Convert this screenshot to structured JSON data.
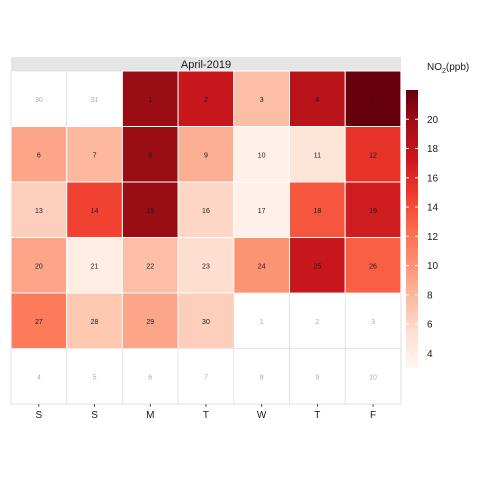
{
  "chart_data": {
    "type": "heatmap",
    "title": "April-2019",
    "legend_title": {
      "main": "NO",
      "sub": "2",
      "suffix": "(ppb)"
    },
    "legend_placement": "right",
    "legend_ticks": [
      4,
      6,
      8,
      10,
      12,
      14,
      16,
      18,
      20
    ],
    "color_range": [
      3,
      22
    ],
    "colors": {
      "low": "#fff5f0",
      "high": "#67000d",
      "inactive_text": "#aaaaaa",
      "active_text": "#1a1a1a",
      "header_bg": "#e5e5e5",
      "grid_line": "#d9d9d9"
    },
    "weekday_labels": [
      "S",
      "S",
      "M",
      "T",
      "W",
      "T",
      "F"
    ],
    "cells": [
      {
        "week": 0,
        "weekday": 0,
        "day": "30",
        "value": null
      },
      {
        "week": 0,
        "weekday": 1,
        "day": "31",
        "value": null
      },
      {
        "week": 0,
        "weekday": 2,
        "day": "1",
        "value": 20
      },
      {
        "week": 0,
        "weekday": 3,
        "day": "2",
        "value": 17.5
      },
      {
        "week": 0,
        "weekday": 4,
        "day": "3",
        "value": 7.5
      },
      {
        "week": 0,
        "weekday": 5,
        "day": "4",
        "value": 18.5
      },
      {
        "week": 0,
        "weekday": 6,
        "day": "5",
        "value": 22
      },
      {
        "week": 1,
        "weekday": 0,
        "day": "6",
        "value": 9
      },
      {
        "week": 1,
        "weekday": 1,
        "day": "7",
        "value": 8
      },
      {
        "week": 1,
        "weekday": 2,
        "day": "8",
        "value": 20
      },
      {
        "week": 1,
        "weekday": 3,
        "day": "9",
        "value": 8.5
      },
      {
        "week": 1,
        "weekday": 4,
        "day": "10",
        "value": 3.5
      },
      {
        "week": 1,
        "weekday": 5,
        "day": "11",
        "value": 5
      },
      {
        "week": 1,
        "weekday": 6,
        "day": "12",
        "value": 15.5
      },
      {
        "week": 2,
        "weekday": 0,
        "day": "13",
        "value": 6.5
      },
      {
        "week": 2,
        "weekday": 1,
        "day": "14",
        "value": 14.5
      },
      {
        "week": 2,
        "weekday": 2,
        "day": "15",
        "value": 20
      },
      {
        "week": 2,
        "weekday": 3,
        "day": "16",
        "value": 6
      },
      {
        "week": 2,
        "weekday": 4,
        "day": "17",
        "value": 3.5
      },
      {
        "week": 2,
        "weekday": 5,
        "day": "18",
        "value": 13.5
      },
      {
        "week": 2,
        "weekday": 6,
        "day": "19",
        "value": 17
      },
      {
        "week": 3,
        "weekday": 0,
        "day": "20",
        "value": 9
      },
      {
        "week": 3,
        "weekday": 1,
        "day": "21",
        "value": 4
      },
      {
        "week": 3,
        "weekday": 2,
        "day": "22",
        "value": 7.5
      },
      {
        "week": 3,
        "weekday": 3,
        "day": "23",
        "value": 5.5
      },
      {
        "week": 3,
        "weekday": 4,
        "day": "24",
        "value": 10
      },
      {
        "week": 3,
        "weekday": 5,
        "day": "25",
        "value": 17.5
      },
      {
        "week": 3,
        "weekday": 6,
        "day": "26",
        "value": 13
      },
      {
        "week": 4,
        "weekday": 0,
        "day": "27",
        "value": 11.5
      },
      {
        "week": 4,
        "weekday": 1,
        "day": "28",
        "value": 7
      },
      {
        "week": 4,
        "weekday": 2,
        "day": "29",
        "value": 9
      },
      {
        "week": 4,
        "weekday": 3,
        "day": "30",
        "value": 6.5
      },
      {
        "week": 4,
        "weekday": 4,
        "day": "1",
        "value": null
      },
      {
        "week": 4,
        "weekday": 5,
        "day": "2",
        "value": null
      },
      {
        "week": 4,
        "weekday": 6,
        "day": "3",
        "value": null
      },
      {
        "week": 5,
        "weekday": 0,
        "day": "4",
        "value": null
      },
      {
        "week": 5,
        "weekday": 1,
        "day": "5",
        "value": null
      },
      {
        "week": 5,
        "weekday": 2,
        "day": "6",
        "value": null
      },
      {
        "week": 5,
        "weekday": 3,
        "day": "7",
        "value": null
      },
      {
        "week": 5,
        "weekday": 4,
        "day": "8",
        "value": null
      },
      {
        "week": 5,
        "weekday": 5,
        "day": "9",
        "value": null
      },
      {
        "week": 5,
        "weekday": 6,
        "day": "10",
        "value": null
      }
    ]
  }
}
